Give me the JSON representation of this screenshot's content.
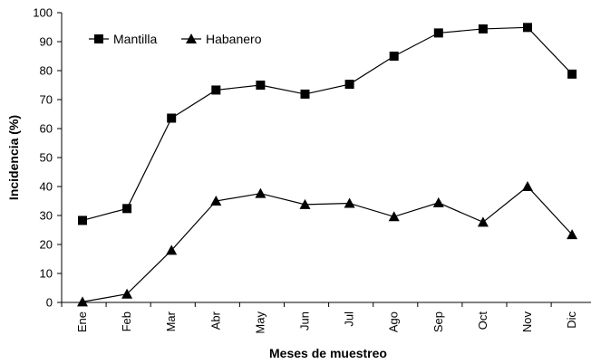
{
  "chart_data": {
    "type": "line",
    "categories": [
      "Ene",
      "Feb",
      "Mar",
      "Abr",
      "May",
      "Jun",
      "Jul",
      "Ago",
      "Sep",
      "Oct",
      "Nov",
      "Dic"
    ],
    "series": [
      {
        "name": "Mantilla",
        "marker": "square",
        "values": [
          28.3,
          32.4,
          63.6,
          73.3,
          75.0,
          71.9,
          75.3,
          85.0,
          93.0,
          94.4,
          94.9,
          78.8
        ]
      },
      {
        "name": "Habanero",
        "marker": "triangle",
        "values": [
          0.2,
          2.9,
          18.0,
          35.0,
          37.6,
          33.8,
          34.2,
          29.6,
          34.4,
          27.7,
          40.0,
          23.4
        ]
      }
    ],
    "xlabel": "Meses de muestreo",
    "ylabel": "Incidencia (%)",
    "ylim": [
      0,
      100
    ],
    "yticks": [
      0,
      10,
      20,
      30,
      40,
      50,
      60,
      70,
      80,
      90,
      100
    ],
    "grid": false,
    "legend": "top-left",
    "line_color": "#000000"
  }
}
